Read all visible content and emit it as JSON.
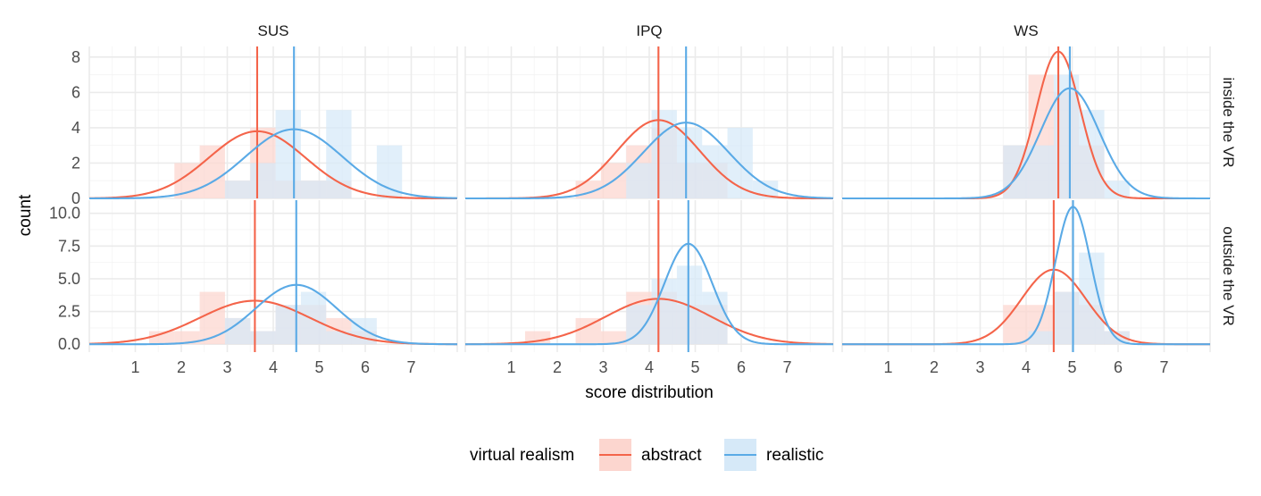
{
  "chart_data": {
    "type": "histogram-density-facets",
    "facet_columns": [
      "SUS",
      "IPQ",
      "WS"
    ],
    "facet_rows": [
      "inside the VR",
      "outside the VR"
    ],
    "xlabel": "score distribution",
    "ylabel": "count",
    "x_ticks": [
      1,
      2,
      3,
      4,
      5,
      6,
      7
    ],
    "xlim": [
      0,
      8
    ],
    "row_axes": [
      {
        "ylim": [
          0,
          8.6
        ],
        "ticks": [
          0,
          2,
          4,
          6,
          8
        ],
        "tick_labels": [
          "0",
          "2",
          "4",
          "6",
          "8"
        ]
      },
      {
        "ylim": [
          -0.6,
          11.0
        ],
        "ticks": [
          0,
          2.5,
          5,
          7.5,
          10
        ],
        "tick_labels": [
          "0.0",
          "2.5",
          "5.0",
          "7.5",
          "10.0"
        ]
      }
    ],
    "bin_width": 0.55,
    "legend": {
      "title": "virtual realism",
      "position": "bottom",
      "entries": [
        "abstract",
        "realistic"
      ]
    },
    "colors": {
      "abstract": "#f4644a",
      "realistic": "#5aaae6",
      "abstract_fill": "#fcd6cf",
      "realistic_fill": "#d6e9f8"
    },
    "panels": [
      {
        "facet": "SUS",
        "row": "inside the VR",
        "abstract": {
          "mean": 3.65,
          "sd": 1.05,
          "scale": 10,
          "bins": [
            [
              1.85,
              2
            ],
            [
              2.4,
              3
            ],
            [
              2.95,
              1
            ],
            [
              3.5,
              4
            ],
            [
              4.05,
              1
            ],
            [
              4.6,
              1
            ],
            [
              5.15,
              1
            ]
          ]
        },
        "realistic": {
          "mean": 4.45,
          "sd": 1.05,
          "scale": 10.3,
          "bins": [
            [
              2.95,
              1
            ],
            [
              3.5,
              2
            ],
            [
              4.05,
              5
            ],
            [
              4.6,
              1
            ],
            [
              5.15,
              5
            ],
            [
              5.7,
              0
            ],
            [
              6.25,
              3
            ]
          ]
        }
      },
      {
        "facet": "IPQ",
        "row": "inside the VR",
        "abstract": {
          "mean": 4.2,
          "sd": 0.9,
          "scale": 10,
          "bins": [
            [
              2.4,
              1
            ],
            [
              2.95,
              2
            ],
            [
              3.5,
              3
            ],
            [
              4.05,
              4
            ],
            [
              4.6,
              2
            ],
            [
              5.15,
              2
            ]
          ]
        },
        "realistic": {
          "mean": 4.8,
          "sd": 0.93,
          "scale": 10,
          "bins": [
            [
              3.5,
              2
            ],
            [
              4.05,
              5
            ],
            [
              4.6,
              4
            ],
            [
              5.15,
              3
            ],
            [
              5.7,
              4
            ],
            [
              6.25,
              1
            ]
          ]
        }
      },
      {
        "facet": "WS",
        "row": "inside the VR",
        "abstract": {
          "mean": 4.7,
          "sd": 0.48,
          "scale": 10,
          "bins": [
            [
              3.5,
              3
            ],
            [
              4.05,
              7
            ],
            [
              4.6,
              6
            ],
            [
              5.15,
              3
            ]
          ]
        },
        "realistic": {
          "mean": 4.95,
          "sd": 0.64,
          "scale": 10,
          "bins": [
            [
              3.5,
              3
            ],
            [
              4.05,
              3
            ],
            [
              4.6,
              7
            ],
            [
              5.15,
              5
            ],
            [
              5.7,
              1
            ]
          ]
        }
      },
      {
        "facet": "SUS",
        "row": "outside the VR",
        "abstract": {
          "mean": 3.6,
          "sd": 1.2,
          "scale": 10,
          "bins": [
            [
              1.3,
              1
            ],
            [
              1.85,
              1
            ],
            [
              2.4,
              4
            ],
            [
              2.95,
              2
            ],
            [
              3.5,
              1
            ],
            [
              4.05,
              3
            ],
            [
              4.6,
              3
            ],
            [
              5.15,
              2
            ],
            [
              5.7,
              1
            ]
          ]
        },
        "realistic": {
          "mean": 4.5,
          "sd": 0.88,
          "scale": 10,
          "bins": [
            [
              2.95,
              2
            ],
            [
              3.5,
              1
            ],
            [
              4.05,
              3
            ],
            [
              4.6,
              4
            ],
            [
              5.15,
              1
            ],
            [
              5.7,
              2
            ]
          ]
        }
      },
      {
        "facet": "IPQ",
        "row": "outside the VR",
        "abstract": {
          "mean": 4.2,
          "sd": 1.15,
          "scale": 10,
          "bins": [
            [
              1.3,
              1
            ],
            [
              1.85,
              0
            ],
            [
              2.4,
              2
            ],
            [
              2.95,
              1
            ],
            [
              3.5,
              4
            ],
            [
              4.05,
              4
            ],
            [
              4.6,
              3
            ],
            [
              5.15,
              3
            ]
          ]
        },
        "realistic": {
          "mean": 4.85,
          "sd": 0.52,
          "scale": 10,
          "bins": [
            [
              3.5,
              3
            ],
            [
              4.05,
              5
            ],
            [
              4.6,
              6
            ],
            [
              5.15,
              4
            ]
          ]
        }
      },
      {
        "facet": "WS",
        "row": "outside the VR",
        "abstract": {
          "mean": 4.6,
          "sd": 0.7,
          "scale": 10,
          "bins": [
            [
              3.5,
              3
            ],
            [
              4.05,
              3
            ],
            [
              4.6,
              4
            ],
            [
              5.15,
              3
            ],
            [
              5.7,
              1
            ]
          ]
        },
        "realistic": {
          "mean": 5.02,
          "sd": 0.38,
          "scale": 10,
          "bins": [
            [
              4.05,
              1
            ],
            [
              4.6,
              4
            ],
            [
              5.15,
              7
            ],
            [
              5.7,
              1
            ]
          ]
        }
      }
    ]
  }
}
